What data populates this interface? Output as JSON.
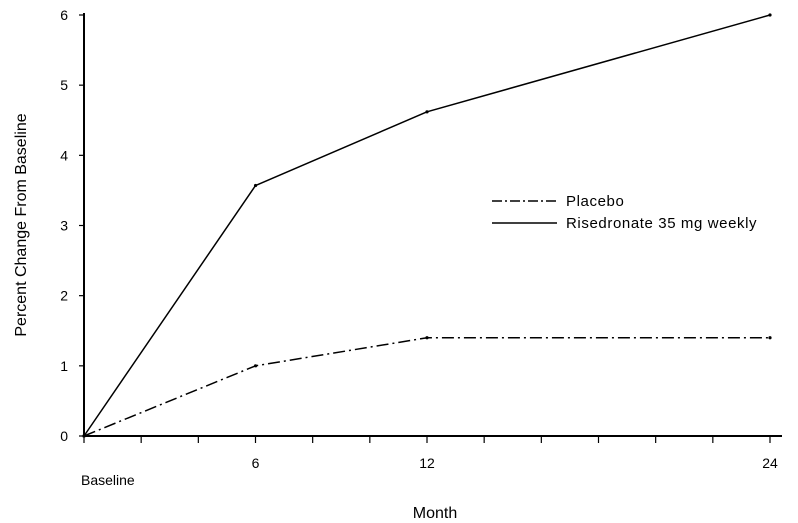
{
  "chart_data": {
    "type": "line",
    "title": "",
    "xlabel": "Month",
    "ylabel": "Percent Change From Baseline",
    "x": [
      0,
      6,
      12,
      24
    ],
    "x_tick_labels": [
      "Baseline",
      "6",
      "12",
      "24"
    ],
    "xlim": [
      0,
      24
    ],
    "ylim": [
      0,
      6
    ],
    "y_ticks": [
      0,
      1,
      2,
      3,
      4,
      5,
      6
    ],
    "grid": false,
    "legend_position": "right",
    "series": [
      {
        "name": "Placebo",
        "style": "dash-dot",
        "values": [
          0,
          1.0,
          1.4,
          1.4
        ]
      },
      {
        "name": "Risedronate 35 mg weekly",
        "style": "solid",
        "values": [
          0,
          3.57,
          4.62,
          6.0
        ]
      }
    ]
  },
  "colors": {
    "line": "#000000",
    "background": "#ffffff"
  }
}
